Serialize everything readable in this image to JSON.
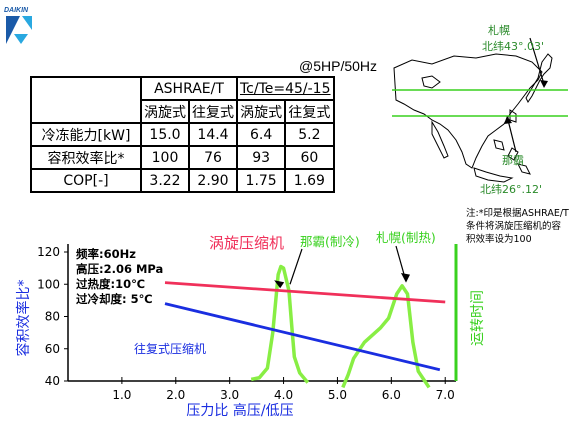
{
  "brand": {
    "name": "DAIKIN",
    "accent": "#1a5aa8"
  },
  "condition_note": "@5HP/50Hz",
  "spec_table": {
    "group_headers": [
      "ASHRAE/T",
      "Tc/Te=45/-15"
    ],
    "sub_headers": [
      "涡旋式",
      "往复式",
      "涡旋式",
      "往复式"
    ],
    "rows": [
      {
        "label": "冷冻能力[kW]",
        "values": [
          "15.0",
          "14.4",
          "6.4",
          "5.2"
        ]
      },
      {
        "label": "容积效率比*",
        "values": [
          "100",
          "76",
          "93",
          "60"
        ]
      },
      {
        "label": "COP[-]",
        "values": [
          "3.22",
          "2.90",
          "1.75",
          "1.69"
        ]
      }
    ]
  },
  "map": {
    "sapporo_name": "札幌",
    "sapporo_lat": "北纬43°.03'",
    "naha_name": "那霸",
    "naha_lat": "北纬26°.12'",
    "line_color": "#39d11f"
  },
  "footnote": "注:*印是根据ASHRAE/T条件将涡旋压缩机的容积效率设为100",
  "chart_data": {
    "type": "line",
    "xlabel": "压力比 高压/低压",
    "ylabel": "容积效率比*",
    "y2label": "运转时间",
    "xlim": [
      0.0,
      7.2
    ],
    "ylim": [
      40,
      120
    ],
    "x_ticks": [
      1.0,
      2.0,
      3.0,
      4.0,
      5.0,
      6.0,
      7.0
    ],
    "x_tick_labels": [
      "1.0",
      "2.0",
      "3.0",
      "4.0",
      "5.0",
      "6.0",
      "7.0"
    ],
    "y_ticks": [
      40,
      60,
      80,
      100,
      120
    ],
    "y_tick_labels": [
      "40",
      "60",
      "80",
      "100",
      "120"
    ],
    "conditions": [
      "频率:60Hz",
      "高压:2.06 MPa",
      "过热度:10℃",
      "过冷却度: 5℃"
    ],
    "series": [
      {
        "name": "涡旋压缩机",
        "color": "#f0305a",
        "x": [
          1.8,
          7.0
        ],
        "y": [
          101,
          89
        ]
      },
      {
        "name": "往复式压缩机",
        "color": "#1a2ee0",
        "x": [
          1.8,
          6.9
        ],
        "y": [
          88,
          47
        ]
      }
    ],
    "runtime_curves": [
      {
        "name": "那霸(制冷)",
        "color": "#88ee44",
        "x": [
          3.4,
          3.55,
          3.7,
          3.8,
          3.9,
          3.95,
          4.0,
          4.1,
          4.15,
          4.2,
          4.3,
          4.45
        ],
        "y": [
          41,
          42,
          48,
          70,
          106,
          111,
          110,
          96,
          75,
          55,
          45,
          39
        ]
      },
      {
        "name": "札幌(制热)",
        "color": "#88ee44",
        "x": [
          5.1,
          5.2,
          5.3,
          5.5,
          5.8,
          5.95,
          6.1,
          6.2,
          6.3,
          6.4,
          6.5,
          6.7
        ],
        "y": [
          36,
          44,
          54,
          64,
          73,
          79,
          94,
          99,
          94,
          64,
          46,
          36
        ]
      }
    ],
    "annotations": [
      "那霸(制冷)",
      "札幌(制热)"
    ]
  }
}
